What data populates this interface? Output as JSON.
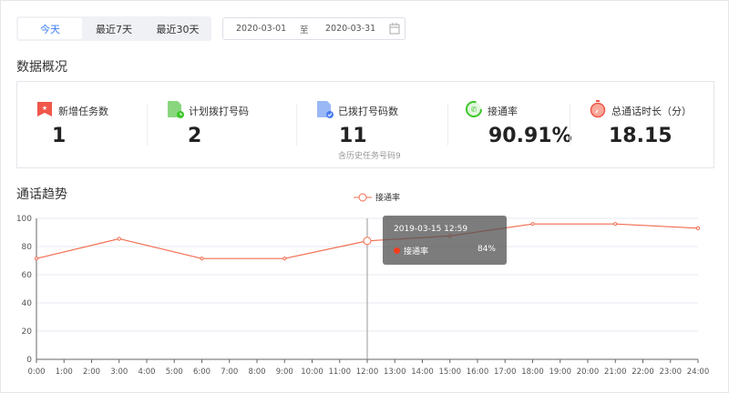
{
  "tabs": [
    {
      "label": "今天",
      "active": true
    },
    {
      "label": "最近7天"
    },
    {
      "label": "最近30天"
    }
  ],
  "date_range": {
    "start": "2020-03-01",
    "separator": "至",
    "end": "2020-03-31"
  },
  "overview_title": "数据概况",
  "stats": [
    {
      "label": "新增任务数",
      "value": "1",
      "icon": "task-flag-icon",
      "color": "#f0564a"
    },
    {
      "label": "计划拨打号码",
      "value": "2",
      "icon": "planned-doc-clock-icon",
      "color": "#4cc63c"
    },
    {
      "label": "已拨打号码数",
      "value": "11",
      "sub": "含历史任务号码9",
      "icon": "dialed-doc-check-icon",
      "color": "#4a7df0"
    },
    {
      "label": "接通率",
      "value": "90.91%",
      "icon": "phone-ring-icon",
      "color": "#3cc72a"
    },
    {
      "label": "总通话时长（分）",
      "value": "18.15",
      "icon": "stopwatch-icon",
      "color": "#f0564a"
    }
  ],
  "trend_title": "通话趋势",
  "tooltip": {
    "title": "2019-03-15 12:59",
    "series": "接通率",
    "value": "84%"
  },
  "chart_data": {
    "type": "line",
    "legend": "top",
    "grid": true,
    "series": [
      {
        "name": "接通率",
        "color": "#f26c4f",
        "x": [
          "0:00",
          "3:00",
          "6:00",
          "9:00",
          "12:00",
          "15:00",
          "18:00",
          "21:00",
          "24:00"
        ],
        "values": [
          71.5,
          85.5,
          71.5,
          71.5,
          84,
          87.5,
          96,
          96,
          93
        ]
      }
    ],
    "x_ticks": [
      "0:00",
      "1:00",
      "2:00",
      "3:00",
      "4:00",
      "5:00",
      "6:00",
      "7:00",
      "8:00",
      "9:00",
      "10:00",
      "11:00",
      "12:00",
      "13:00",
      "14:00",
      "15:00",
      "16:00",
      "17:00",
      "18:00",
      "19:00",
      "20:00",
      "21:00",
      "22:00",
      "23:00",
      "24:00"
    ],
    "y_ticks": [
      "0",
      "20",
      "40",
      "60",
      "80",
      "100"
    ],
    "ylim": [
      0,
      100
    ],
    "highlight_x": "12:00"
  }
}
